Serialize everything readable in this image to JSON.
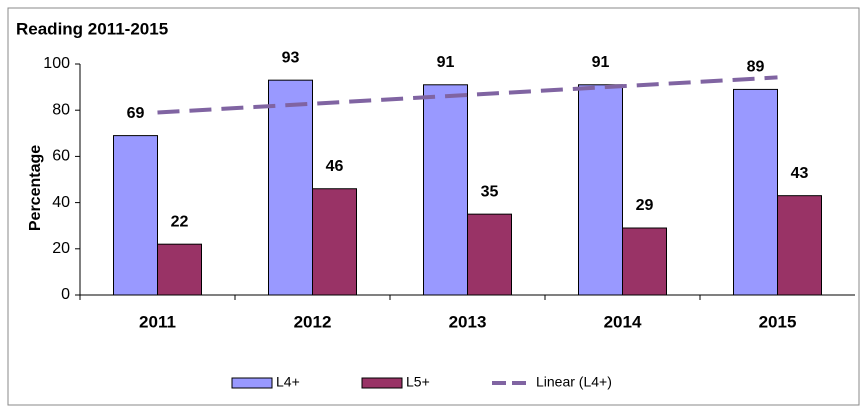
{
  "chart_data": {
    "type": "bar",
    "title": "Reading 2011-2015",
    "y_label": "Percentage",
    "categories": [
      "2011",
      "2012",
      "2013",
      "2014",
      "2015"
    ],
    "series": [
      {
        "name": "L4+",
        "color": "#9999ff",
        "values": [
          69,
          93,
          91,
          91,
          89
        ]
      },
      {
        "name": "L5+",
        "color": "#993366",
        "values": [
          22,
          46,
          35,
          29,
          43
        ]
      },
      {
        "name": "Linear (L4+)",
        "color": "#8064a2",
        "type": "trendline",
        "values": [
          79,
          82.8,
          86.6,
          90.4,
          94.2
        ]
      }
    ],
    "ylim": [
      0,
      100
    ],
    "yticks": [
      0,
      20,
      40,
      60,
      80,
      100
    ],
    "grid": false,
    "legend": "bottom"
  }
}
